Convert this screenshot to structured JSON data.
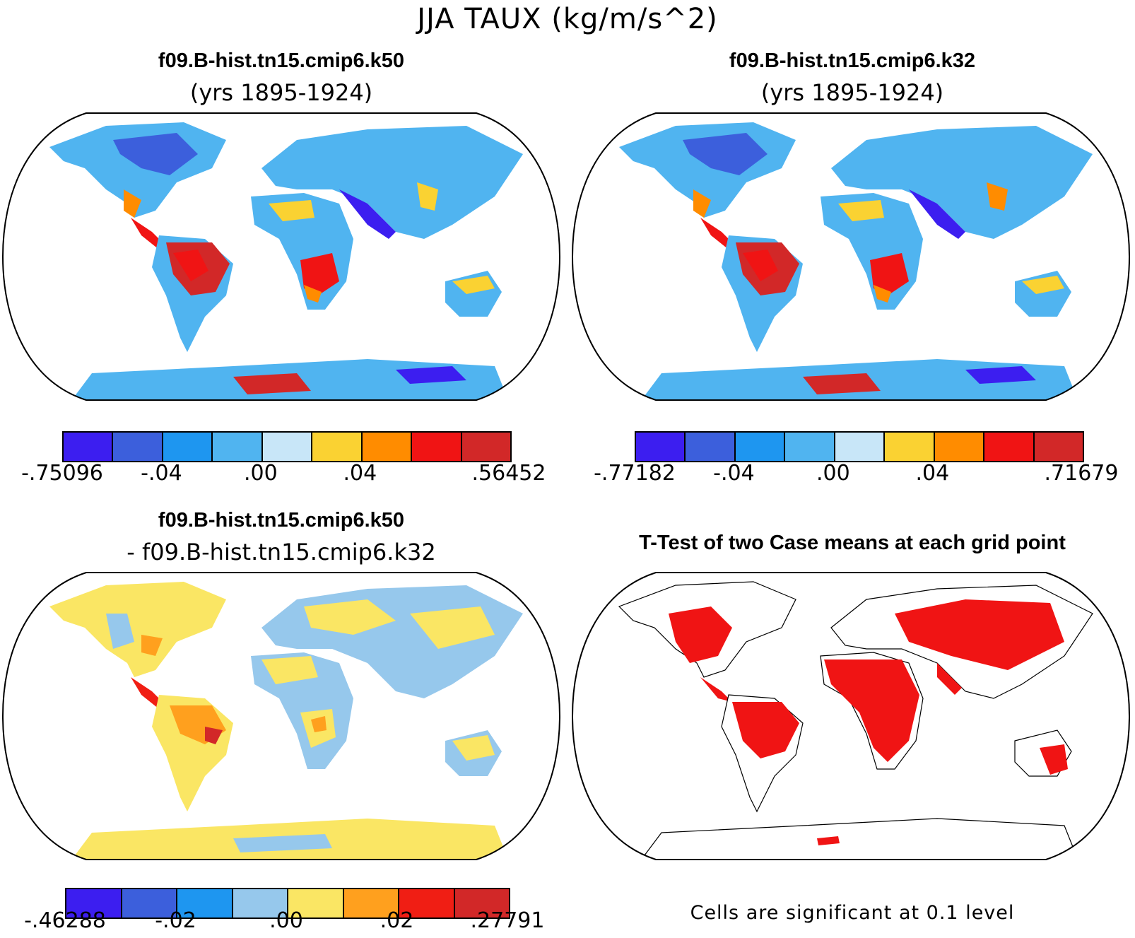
{
  "main_title": "JJA TAUX (kg/m/s^2)",
  "panels": {
    "top_left": {
      "title": "f09.B-hist.tn15.cmip6.k50",
      "subtitle": "(yrs 1895-1924)",
      "colorbar": {
        "colors": [
          "#3c1ef0",
          "#3c5fdc",
          "#1e96f0",
          "#50b4f0",
          "#c8e6f8",
          "#fad232",
          "#ff8c00",
          "#f01414",
          "#d22828"
        ],
        "labels": [
          "-.75096",
          "-.04",
          ".00",
          ".04",
          ".56452"
        ]
      }
    },
    "top_right": {
      "title": "f09.B-hist.tn15.cmip6.k32",
      "subtitle": "(yrs 1895-1924)",
      "colorbar": {
        "colors": [
          "#3c1ef0",
          "#3c5fdc",
          "#1e96f0",
          "#50b4f0",
          "#c8e6f8",
          "#fad232",
          "#ff8c00",
          "#f01414",
          "#d22828"
        ],
        "labels": [
          "-.77182",
          "-.04",
          ".00",
          ".04",
          ".71679"
        ]
      }
    },
    "bottom_left": {
      "title": "f09.B-hist.tn15.cmip6.k50",
      "subtitle": "- f09.B-hist.tn15.cmip6.k32",
      "colorbar": {
        "colors": [
          "#3c1ef0",
          "#3c5fdc",
          "#1e96f0",
          "#96c8ec",
          "#fae664",
          "#ffa01e",
          "#f01e14",
          "#d22828"
        ],
        "labels": [
          "-.46288",
          "-.02",
          ".00",
          ".02",
          ".27791"
        ]
      }
    },
    "bottom_right": {
      "title": "T-Test of two Case means at each grid point",
      "footnote": "Cells are significant at 0.1 level"
    }
  }
}
